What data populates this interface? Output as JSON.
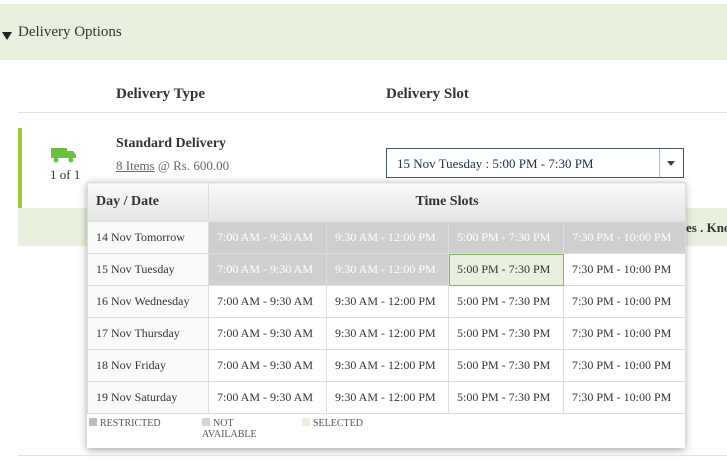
{
  "header": {
    "title": "Delivery Options"
  },
  "columns": [
    "Delivery Type",
    "Delivery Slot"
  ],
  "delivery": {
    "type": "Standard Delivery",
    "items": "8 Items",
    "price": "@ Rs. 600.00",
    "counter": "1 of 1",
    "banner_tail": "es . Kno"
  },
  "slot": {
    "selected": "15 Nov Tuesday : 5:00 PM - 7:30 PM"
  },
  "popup": {
    "headers": [
      "Day / Date",
      "Time Slots"
    ],
    "rows": [
      {
        "date": "14 Nov Tomorrow",
        "slots": [
          {
            "time": "7:00 AM - 9:30 AM",
            "state": "restricted"
          },
          {
            "time": "9:30 AM - 12:00 PM",
            "state": "restricted"
          },
          {
            "time": "5:00 PM - 7:30 PM",
            "state": "restricted"
          },
          {
            "time": "7:30 PM - 10:00 PM",
            "state": "restricted"
          }
        ]
      },
      {
        "date": "15 Nov Tuesday",
        "slots": [
          {
            "time": "7:00 AM - 9:30 AM",
            "state": "restricted"
          },
          {
            "time": "9:30 AM - 12:00 PM",
            "state": "restricted"
          },
          {
            "time": "5:00 PM - 7:30 PM",
            "state": "selected"
          },
          {
            "time": "7:30 PM - 10:00 PM",
            "state": "available"
          }
        ]
      },
      {
        "date": "16 Nov Wednesday",
        "slots": [
          {
            "time": "7:00 AM - 9:30 AM",
            "state": "available"
          },
          {
            "time": "9:30 AM - 12:00 PM",
            "state": "available"
          },
          {
            "time": "5:00 PM - 7:30 PM",
            "state": "available"
          },
          {
            "time": "7:30 PM - 10:00 PM",
            "state": "available"
          }
        ]
      },
      {
        "date": "17 Nov Thursday",
        "slots": [
          {
            "time": "7:00 AM - 9:30 AM",
            "state": "available"
          },
          {
            "time": "9:30 AM - 12:00 PM",
            "state": "available"
          },
          {
            "time": "5:00 PM - 7:30 PM",
            "state": "available"
          },
          {
            "time": "7:30 PM - 10:00 PM",
            "state": "available"
          }
        ]
      },
      {
        "date": "18 Nov Friday",
        "slots": [
          {
            "time": "7:00 AM - 9:30 AM",
            "state": "available"
          },
          {
            "time": "9:30 AM - 12:00 PM",
            "state": "available"
          },
          {
            "time": "5:00 PM - 7:30 PM",
            "state": "available"
          },
          {
            "time": "7:30 PM - 10:00 PM",
            "state": "available"
          }
        ]
      },
      {
        "date": "19 Nov Saturday",
        "slots": [
          {
            "time": "7:00 AM - 9:30 AM",
            "state": "available"
          },
          {
            "time": "9:30 AM - 12:00 PM",
            "state": "available"
          },
          {
            "time": "5:00 PM - 7:30 PM",
            "state": "available"
          },
          {
            "time": "7:30 PM - 10:00 PM",
            "state": "available"
          }
        ]
      }
    ],
    "legend": [
      {
        "label": "RESTRICTED",
        "state": "restricted"
      },
      {
        "label": "NOT AVAILABLE",
        "state": "unavailable"
      },
      {
        "label": "SELECTED",
        "state": "selected"
      }
    ]
  }
}
